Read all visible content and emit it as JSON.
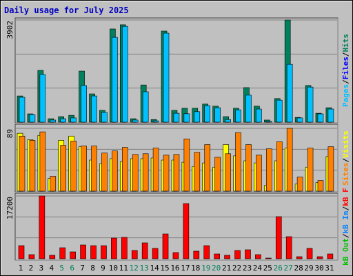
{
  "title": "Daily usage for July 2025",
  "legend_separator": "/",
  "chart_data": [
    {
      "type": "bar",
      "ylim": [
        0,
        3902
      ],
      "yticks": [
        3902
      ],
      "series": [
        {
          "name": "Hits",
          "color": "#00805c",
          "values": [
            1000,
            316,
            1977,
            130,
            210,
            260,
            1950,
            1080,
            450,
            3560,
            3720,
            130,
            1420,
            100,
            3480,
            450,
            530,
            530,
            690,
            610,
            210,
            530,
            1320,
            610,
            80,
            900,
            3902,
            180,
            1400,
            340,
            550
          ]
        },
        {
          "name": "Files",
          "color": "#0000ff",
          "values": [
            0,
            0,
            0,
            0,
            0,
            0,
            0,
            0,
            0,
            0,
            0,
            0,
            0,
            0,
            0,
            0,
            0,
            0,
            0,
            0,
            0,
            0,
            0,
            0,
            0,
            0,
            0,
            0,
            0,
            0,
            0
          ]
        },
        {
          "name": "Pages",
          "color": "#00c0ff",
          "values": [
            950,
            290,
            1820,
            80,
            130,
            160,
            1400,
            1000,
            370,
            3240,
            3660,
            80,
            1160,
            50,
            3400,
            340,
            320,
            400,
            630,
            550,
            100,
            470,
            1030,
            500,
            30,
            840,
            2210,
            160,
            1340,
            316,
            500
          ]
        }
      ]
    },
    {
      "type": "bar",
      "ylim": [
        0,
        89
      ],
      "yticks": [
        89
      ],
      "series": [
        {
          "name": "Visits",
          "color": "#ffff00",
          "values": [
            82,
            73,
            79,
            18,
            72,
            78,
            63,
            44,
            39,
            46,
            42,
            46,
            46,
            47,
            44,
            44,
            41,
            35,
            40,
            34,
            66,
            50,
            43,
            40,
            8,
            43,
            61,
            10,
            34,
            12,
            49
          ]
        },
        {
          "name": "Sites",
          "color": "#ff8000",
          "values": [
            78,
            72,
            84,
            21,
            65,
            71,
            64,
            64,
            54,
            57,
            62,
            52,
            53,
            61,
            51,
            52,
            74,
            55,
            66,
            48,
            53,
            83,
            66,
            51,
            60,
            70,
            89,
            20,
            61,
            15,
            63
          ]
        }
      ]
    },
    {
      "type": "bar",
      "ylim": [
        0,
        17200
      ],
      "yticks": [
        17200
      ],
      "categories": [
        "1",
        "2",
        "3",
        "4",
        "5",
        "6",
        "7",
        "8",
        "9",
        "10",
        "11",
        "12",
        "13",
        "14",
        "15",
        "16",
        "17",
        "18",
        "19",
        "20",
        "21",
        "22",
        "23",
        "24",
        "25",
        "26",
        "27",
        "28",
        "29",
        "30",
        "31"
      ],
      "category_colors": [
        "#000000",
        "#000000",
        "#000000",
        "#000000",
        "#00805c",
        "#00805c",
        "#000000",
        "#000000",
        "#000000",
        "#000000",
        "#000000",
        "#00805c",
        "#00805c",
        "#000000",
        "#000000",
        "#000000",
        "#000000",
        "#000000",
        "#00805c",
        "#00805c",
        "#000000",
        "#000000",
        "#000000",
        "#000000",
        "#000000",
        "#00805c",
        "#00805c",
        "#000000",
        "#000000",
        "#000000",
        "#000000"
      ],
      "series": [
        {
          "name": "kB F",
          "color": "#ff0000",
          "values": [
            3590,
            1130,
            17200,
            950,
            3020,
            1890,
            3780,
            3590,
            3590,
            5670,
            5860,
            2270,
            4350,
            2840,
            6800,
            1700,
            15120,
            2080,
            3590,
            1320,
            950,
            2270,
            2460,
            1130,
            190,
            11530,
            6050,
            570,
            2840,
            570,
            1320
          ]
        },
        {
          "name": "kB In",
          "color": "#0080ff",
          "values": [
            0,
            0,
            0,
            0,
            0,
            0,
            0,
            0,
            0,
            0,
            0,
            0,
            0,
            0,
            0,
            0,
            0,
            0,
            0,
            0,
            0,
            0,
            0,
            0,
            0,
            0,
            0,
            0,
            0,
            0,
            0
          ]
        },
        {
          "name": "kB Out",
          "color": "#00c000",
          "values": [
            0,
            0,
            0,
            0,
            0,
            0,
            0,
            0,
            0,
            0,
            0,
            0,
            0,
            0,
            0,
            0,
            0,
            0,
            0,
            0,
            0,
            0,
            0,
            0,
            0,
            0,
            0,
            0,
            0,
            0,
            0
          ]
        }
      ]
    }
  ]
}
